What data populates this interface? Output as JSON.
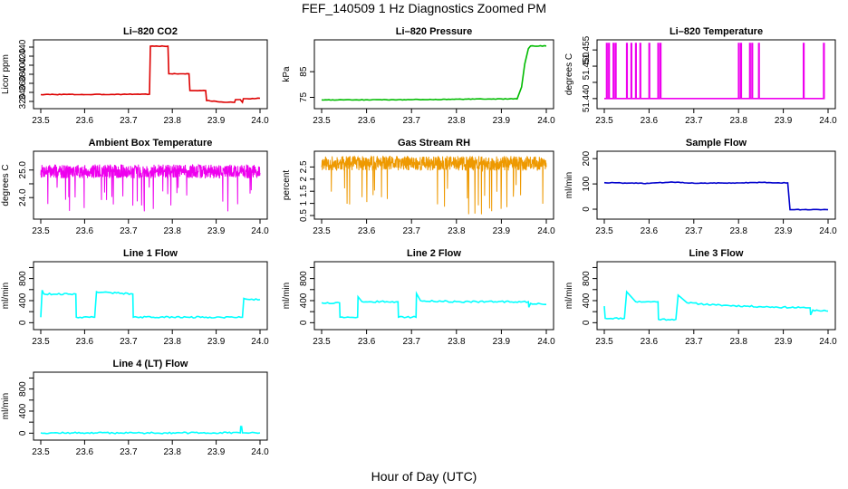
{
  "figure": {
    "title": "FEF_140509  1 Hz Diagnostics Zoomed PM",
    "xlabel": "Hour of Day (UTC)"
  },
  "chart_data": [
    {
      "id": "co2",
      "type": "line",
      "title": "Li–820 CO2",
      "ylabel": "Licor ppm",
      "color": "#dd0000",
      "xlim": [
        23.5,
        24.0
      ],
      "ylim": [
        312,
        448
      ],
      "xticks": [
        "23.5",
        "23.6",
        "23.7",
        "23.8",
        "23.9",
        "24.0"
      ],
      "yticks": [
        320,
        340,
        360,
        380,
        400,
        420,
        440
      ],
      "x": [
        23.5,
        23.56,
        23.61,
        23.66,
        23.713,
        23.748,
        23.75,
        23.79,
        23.792,
        23.838,
        23.84,
        23.876,
        23.878,
        23.92,
        23.925,
        23.942,
        23.944,
        23.955,
        23.96,
        23.962,
        23.97,
        24.0
      ],
      "y": [
        335,
        335.5,
        335,
        335.5,
        336,
        336,
        442,
        442,
        381,
        381,
        344,
        344,
        322,
        318,
        318,
        318,
        324,
        324,
        318,
        326,
        326,
        327
      ]
    },
    {
      "id": "pressure",
      "type": "line",
      "title": "Li–820 Pressure",
      "ylabel": "kPa",
      "color": "#00bb00",
      "xlim": [
        23.5,
        24.0
      ],
      "ylim": [
        72,
        96
      ],
      "xticks": [
        "23.5",
        "23.6",
        "23.7",
        "23.8",
        "23.9",
        "24.0"
      ],
      "yticks": [
        75,
        85
      ],
      "x": [
        23.5,
        23.7,
        23.84,
        23.9,
        23.935,
        23.945,
        23.952,
        23.96,
        23.965,
        24.0
      ],
      "y": [
        74,
        74.1,
        74.3,
        74.4,
        74.4,
        79,
        88,
        94,
        95,
        95
      ]
    },
    {
      "id": "licor_temp",
      "type": "line",
      "title": "Li–820 Temperature",
      "ylabel": "degrees C",
      "color": "#ee00ee",
      "xlim": [
        23.5,
        24.0
      ],
      "ylim": [
        51.438,
        51.457
      ],
      "xticks": [
        "23.5",
        "23.6",
        "23.7",
        "23.8",
        "23.9",
        "24.0"
      ],
      "yticks": [
        51.44,
        51.445,
        51.45,
        51.455
      ],
      "ytick_labels": [
        "51.440",
        "",
        "51.450",
        "51.455"
      ],
      "baseline": 51.44,
      "spikes": [
        23.505,
        23.51,
        23.52,
        23.525,
        23.55,
        23.56,
        23.57,
        23.58,
        23.6,
        23.62,
        23.625,
        23.8,
        23.805,
        23.825,
        23.83,
        23.845,
        23.945,
        23.99
      ],
      "spike_top": 51.457
    },
    {
      "id": "ambient",
      "type": "line",
      "title": "Ambient Box Temperature",
      "ylabel": "degrees C",
      "color": "#ee00ee",
      "xlim": [
        23.5,
        24.0
      ],
      "ylim": [
        23.35,
        25.55
      ],
      "xticks": [
        "23.5",
        "23.6",
        "23.7",
        "23.8",
        "23.9",
        "24.0"
      ],
      "yticks": [
        24.0,
        24.5,
        25.0
      ],
      "ytick_labels": [
        "24.0",
        "",
        "25.0"
      ],
      "noise": {
        "center": 24.95,
        "amp": 0.25,
        "spike_min": 23.5,
        "seed": 7
      }
    },
    {
      "id": "rh",
      "type": "line",
      "title": "Gas Stream RH",
      "ylabel": "percent",
      "color": "#ee9900",
      "xlim": [
        23.5,
        24.0
      ],
      "ylim": [
        0.5,
        3.0
      ],
      "xticks": [
        "23.5",
        "23.6",
        "23.7",
        "23.8",
        "23.9",
        "24.0"
      ],
      "yticks": [
        0.5,
        1.0,
        1.5,
        2.0,
        2.5
      ],
      "noise": {
        "center": 2.65,
        "amp": 0.3,
        "spike_min": 0.55,
        "seed": 11
      }
    },
    {
      "id": "sample_flow",
      "type": "line",
      "title": "Sample Flow",
      "ylabel": "ml/min",
      "color": "#0000cc",
      "xlim": [
        23.5,
        24.0
      ],
      "ylim": [
        -25,
        215
      ],
      "xticks": [
        "23.5",
        "23.6",
        "23.7",
        "23.8",
        "23.9",
        "24.0"
      ],
      "yticks": [
        0,
        100,
        200
      ],
      "x": [
        23.5,
        23.6,
        23.65,
        23.7,
        23.8,
        23.85,
        23.91,
        23.915,
        23.925,
        24.0
      ],
      "y": [
        105,
        102,
        108,
        103,
        104,
        106,
        104,
        -2,
        -2,
        -2
      ]
    },
    {
      "id": "line1",
      "type": "line",
      "title": "Line 1 Flow",
      "ylabel": "ml/min",
      "color": "#00ffff",
      "xlim": [
        23.5,
        24.0
      ],
      "ylim": [
        -60,
        1040
      ],
      "xticks": [
        "23.5",
        "23.6",
        "23.7",
        "23.8",
        "23.9",
        "24.0"
      ],
      "yticks": [
        0,
        200,
        400,
        600,
        800,
        1000
      ],
      "ytick_labels": [
        "0",
        "",
        "400",
        "",
        "800",
        ""
      ],
      "x": [
        23.5,
        23.503,
        23.507,
        23.58,
        23.581,
        23.62,
        23.623,
        23.627,
        23.71,
        23.711,
        23.96,
        23.963,
        23.967,
        24.0
      ],
      "y": [
        100,
        590,
        520,
        520,
        100,
        100,
        100,
        560,
        520,
        100,
        100,
        440,
        430,
        420
      ]
    },
    {
      "id": "line2",
      "type": "line",
      "title": "Line 2 Flow",
      "ylabel": "ml/min",
      "color": "#00ffff",
      "xlim": [
        23.5,
        24.0
      ],
      "ylim": [
        -60,
        1040
      ],
      "xticks": [
        "23.5",
        "23.6",
        "23.7",
        "23.8",
        "23.9",
        "24.0"
      ],
      "yticks": [
        0,
        200,
        400,
        600,
        800,
        1000
      ],
      "ytick_labels": [
        "0",
        "",
        "400",
        "",
        "800",
        ""
      ],
      "x": [
        23.5,
        23.54,
        23.541,
        23.58,
        23.581,
        23.59,
        23.67,
        23.671,
        23.71,
        23.711,
        23.72,
        23.8,
        23.96,
        23.961,
        23.965,
        24.0
      ],
      "y": [
        360,
        360,
        100,
        100,
        470,
        380,
        380,
        100,
        100,
        530,
        400,
        380,
        380,
        280,
        350,
        330
      ]
    },
    {
      "id": "line3",
      "type": "line",
      "title": "Line 3 Flow",
      "ylabel": "ml/min",
      "color": "#00ffff",
      "xlim": [
        23.5,
        24.0
      ],
      "ylim": [
        -60,
        1040
      ],
      "xticks": [
        "23.5",
        "23.6",
        "23.7",
        "23.8",
        "23.9",
        "24.0"
      ],
      "yticks": [
        0,
        200,
        400,
        600,
        800,
        1000
      ],
      "ytick_labels": [
        "0",
        "",
        "400",
        "",
        "800",
        ""
      ],
      "x": [
        23.5,
        23.502,
        23.545,
        23.55,
        23.57,
        23.62,
        23.621,
        23.66,
        23.665,
        23.685,
        23.75,
        23.85,
        23.95,
        23.96,
        23.961,
        23.966,
        24.0
      ],
      "y": [
        300,
        80,
        80,
        560,
        380,
        380,
        60,
        60,
        500,
        360,
        320,
        290,
        270,
        270,
        140,
        230,
        210
      ]
    },
    {
      "id": "line4",
      "type": "line",
      "title": "Line 4 (LT) Flow",
      "ylabel": "ml/min",
      "color": "#00ffff",
      "xlim": [
        23.5,
        24.0
      ],
      "ylim": [
        -60,
        1040
      ],
      "xticks": [
        "23.5",
        "23.6",
        "23.7",
        "23.8",
        "23.9",
        "24.0"
      ],
      "yticks": [
        0,
        200,
        400,
        600,
        800,
        1000
      ],
      "ytick_labels": [
        "0",
        "",
        "400",
        "",
        "800",
        ""
      ],
      "x": [
        23.5,
        23.955,
        23.956,
        23.958,
        23.96,
        24.0
      ],
      "y": [
        5,
        5,
        120,
        120,
        5,
        5
      ]
    }
  ]
}
